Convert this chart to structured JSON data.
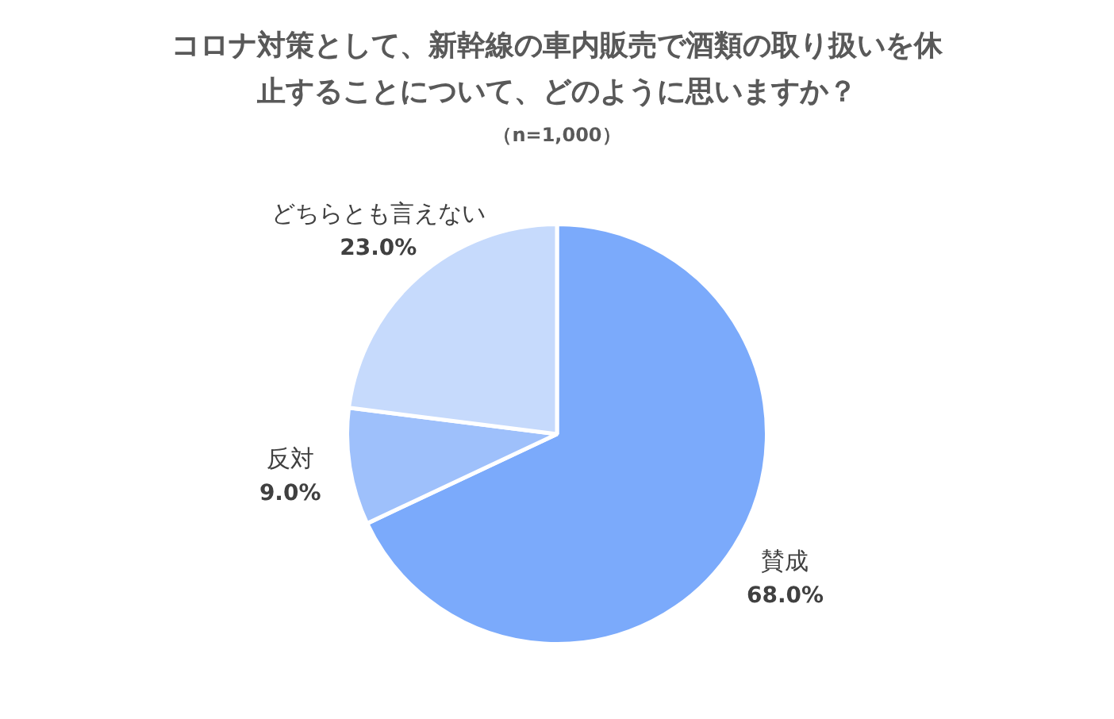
{
  "chart_data": {
    "type": "pie",
    "title": "コロナ対策として、新幹線の車内販売で酒類の取り扱いを休止することについて、どのように思いますか？",
    "subtitle": "（n=1,000）",
    "categories": [
      "賛成",
      "反対",
      "どちらとも言えない"
    ],
    "values": [
      68,
      9,
      23
    ],
    "value_labels": [
      "68.0%",
      "9.0%",
      "23.0%"
    ],
    "colors": [
      "#7baafb",
      "#9ec0fb",
      "#c6dafc"
    ],
    "legend": false
  }
}
